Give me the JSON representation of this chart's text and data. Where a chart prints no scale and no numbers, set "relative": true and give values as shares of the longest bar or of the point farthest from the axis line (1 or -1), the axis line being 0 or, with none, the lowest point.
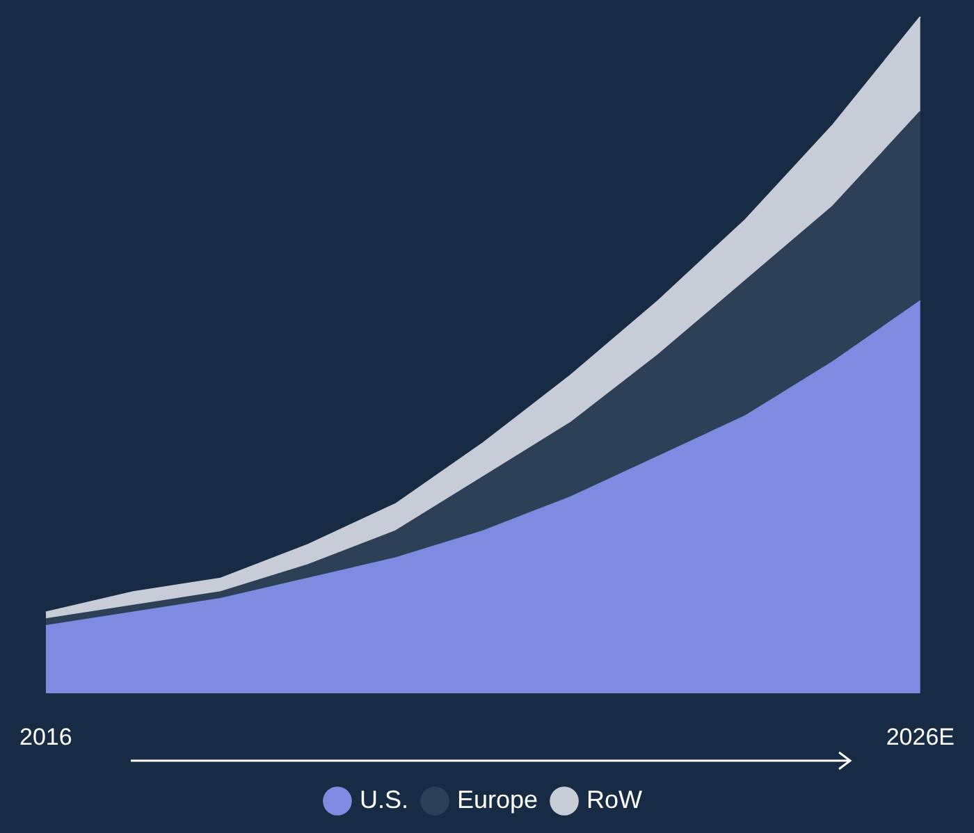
{
  "chart_data": {
    "type": "area",
    "stacked": true,
    "relative": true,
    "legend": "bottom",
    "categories": [
      "2016",
      null,
      null,
      null,
      null,
      null,
      null,
      null,
      null,
      null,
      "2026E"
    ],
    "series": [
      {
        "name": "U.S.",
        "color": "#7f8be0",
        "values": [
          0.1,
          0.12,
          0.14,
          0.17,
          0.2,
          0.24,
          0.29,
          0.35,
          0.41,
          0.49,
          0.58
        ]
      },
      {
        "name": "Europe",
        "color": "#2e4058",
        "values": [
          0.01,
          0.01,
          0.01,
          0.02,
          0.04,
          0.08,
          0.11,
          0.15,
          0.2,
          0.23,
          0.28
        ]
      },
      {
        "name": "RoW",
        "color": "#c8ccd6",
        "values": [
          0.01,
          0.02,
          0.02,
          0.03,
          0.04,
          0.05,
          0.07,
          0.08,
          0.09,
          0.12,
          0.14
        ]
      }
    ]
  }
}
